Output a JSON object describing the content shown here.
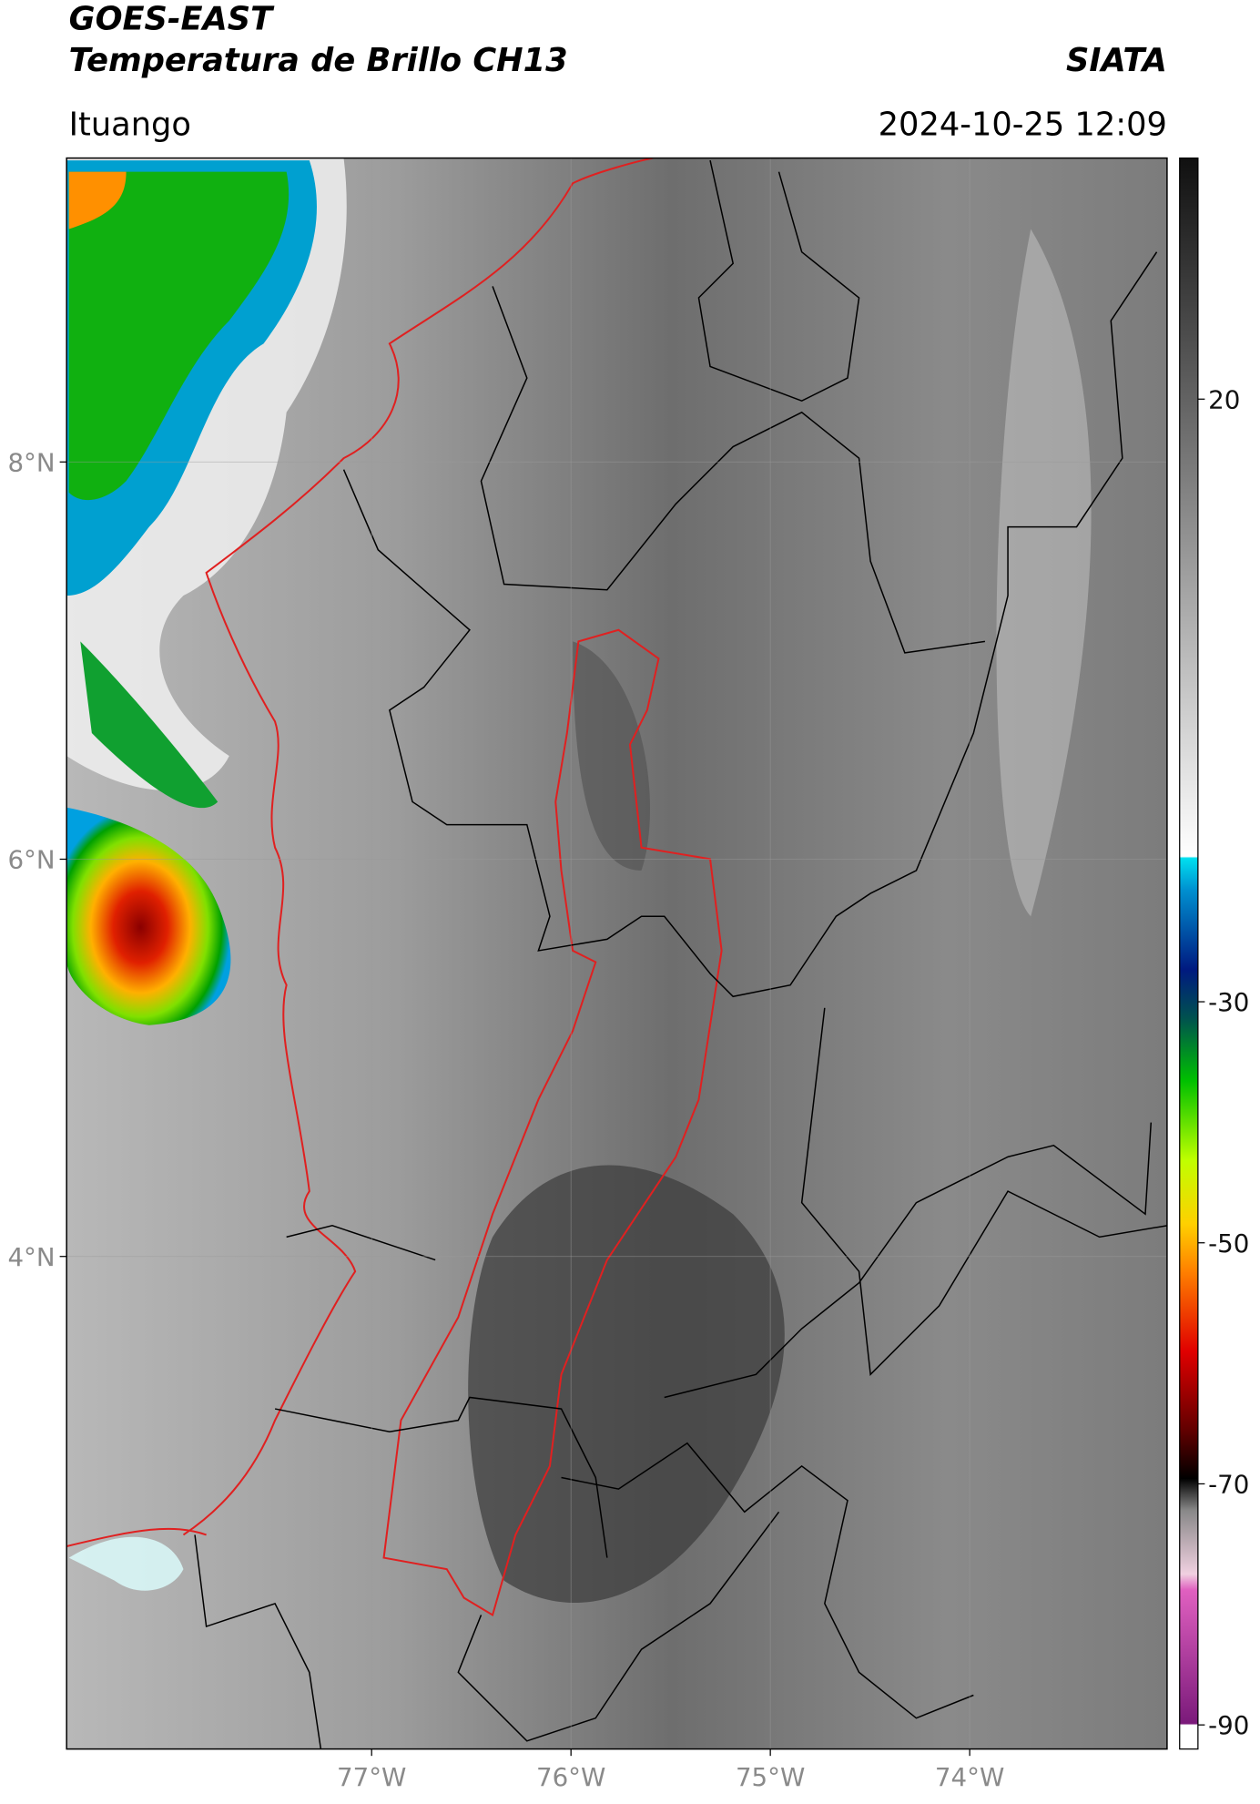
{
  "header": {
    "title": "GOES-EAST",
    "subtitle": "Temperatura de Brillo CH13",
    "brand": "SIATA",
    "location": "Ituango",
    "datetime": "2024-10-25 12:09"
  },
  "map": {
    "xlim": [
      -78.53,
      -73.01
    ],
    "ylim": [
      1.52,
      9.53
    ],
    "xticks": [
      {
        "value": -77,
        "label": "77°W"
      },
      {
        "value": -76,
        "label": "76°W"
      },
      {
        "value": -75,
        "label": "75°W"
      },
      {
        "value": -74,
        "label": "74°W"
      }
    ],
    "yticks": [
      {
        "value": 8,
        "label": "8°N"
      },
      {
        "value": 6,
        "label": "6°N"
      },
      {
        "value": 4,
        "label": "4°N"
      }
    ],
    "grid": true
  },
  "colorbar": {
    "lim": [
      -92,
      40
    ],
    "ticks": [
      20,
      -30,
      -50,
      -70,
      -90
    ]
  }
}
